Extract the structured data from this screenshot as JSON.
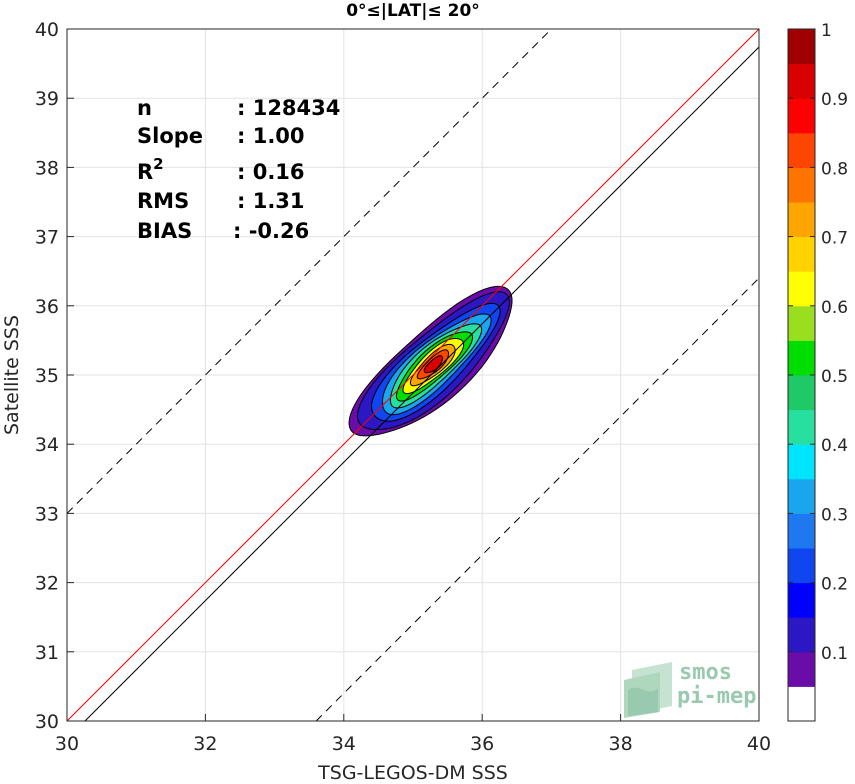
{
  "chart_data": {
    "type": "contour",
    "title": "0°≤|LAT|≤ 20°",
    "xlabel": "TSG-LEGOS-DM SSS",
    "ylabel": "Satellite SSS",
    "xlim": [
      30,
      40
    ],
    "ylim": [
      30,
      40
    ],
    "xticks": [
      "30",
      "32",
      "34",
      "36",
      "38",
      "40"
    ],
    "yticks": [
      "30",
      "31",
      "32",
      "33",
      "34",
      "35",
      "36",
      "37",
      "38",
      "39",
      "40"
    ],
    "grid": true,
    "stats": {
      "n_label": "n",
      "n_value": ": 128434",
      "slope_label": "Slope",
      "slope_value": ": 1.00",
      "r2_label": "R",
      "r2_sup": "2",
      "r2_value": ": 0.16",
      "rms_label": "RMS",
      "rms_value": ": 1.31",
      "bias_label": "BIAS",
      "bias_value": ": -0.26"
    },
    "lines": [
      {
        "kind": "identity",
        "color": "#ff0000",
        "x": [
          30,
          40
        ],
        "y": [
          30,
          40
        ]
      },
      {
        "kind": "regression",
        "color": "#000000",
        "x": [
          30.26,
          40
        ],
        "y": [
          30,
          39.74
        ]
      },
      {
        "kind": "upper-bound",
        "color": "#000000",
        "dashed": true,
        "x": [
          30,
          37
        ],
        "y": [
          33.0,
          40
        ]
      },
      {
        "kind": "lower-bound",
        "color": "#000000",
        "dashed": true,
        "x": [
          33.6,
          40
        ],
        "y": [
          30,
          36.4
        ]
      }
    ],
    "density": {
      "center": [
        35.3,
        35.15
      ],
      "angle_deg": 42,
      "levels": [
        0.05,
        0.1,
        0.2,
        0.3,
        0.4,
        0.5,
        0.6,
        0.7,
        0.8,
        0.9
      ],
      "semi_axes": [
        [
          1.45,
          0.52
        ],
        [
          1.35,
          0.46
        ],
        [
          1.15,
          0.38
        ],
        [
          0.98,
          0.32
        ],
        [
          0.82,
          0.27
        ],
        [
          0.68,
          0.22
        ],
        [
          0.54,
          0.18
        ],
        [
          0.4,
          0.14
        ],
        [
          0.28,
          0.1
        ],
        [
          0.16,
          0.07
        ]
      ]
    },
    "colorbar": {
      "ticks": [
        "0.1",
        "0.2",
        "0.3",
        "0.4",
        "0.5",
        "0.6",
        "0.7",
        "0.8",
        "0.9",
        "1"
      ],
      "tick_values": [
        0.1,
        0.2,
        0.3,
        0.4,
        0.5,
        0.6,
        0.7,
        0.8,
        0.9,
        1.0
      ],
      "colors": [
        "#ffffff",
        "#6a0da8",
        "#2b17c4",
        "#0000ff",
        "#1046f0",
        "#1e78f0",
        "#1aa6ee",
        "#00e5ff",
        "#27e0a0",
        "#1fc966",
        "#00dd00",
        "#9adf1f",
        "#ffff00",
        "#ffd200",
        "#ffa500",
        "#ff7300",
        "#ff4500",
        "#ff0000",
        "#d80000",
        "#a00000"
      ]
    },
    "watermark": {
      "line1": "smos",
      "line2": "pi-mep"
    }
  }
}
